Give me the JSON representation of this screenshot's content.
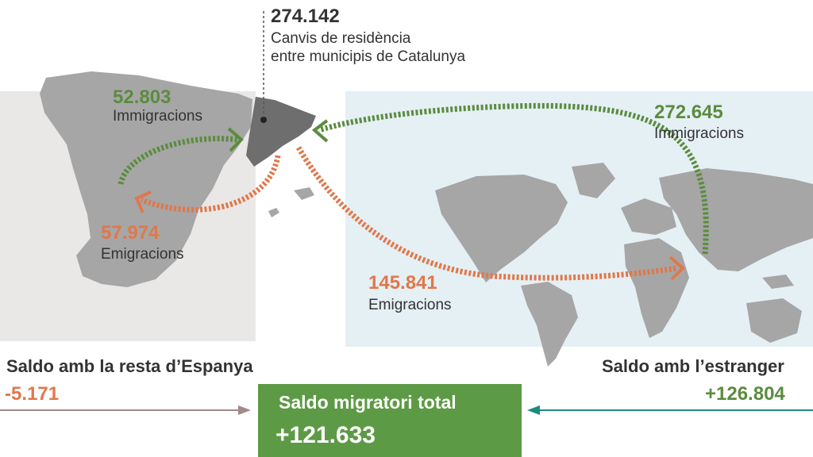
{
  "intra": {
    "value": "274.142",
    "line1": "Canvis de residència",
    "line2": "entre municipis de Catalunya"
  },
  "spain": {
    "immigration_value": "52.803",
    "immigration_label": "Immigracions",
    "emigration_value": "57.974",
    "emigration_label": "Emigracions"
  },
  "abroad": {
    "immigration_value": "272.645",
    "immigration_label": "Immigracions",
    "emigration_value": "145.841",
    "emigration_label": "Emigracions"
  },
  "saldo_spain": {
    "label": "Saldo amb la resta d’Espanya",
    "value": "-5.171"
  },
  "saldo_abroad": {
    "label": "Saldo amb l’estranger",
    "value": "+126.804"
  },
  "total": {
    "label": "Saldo migratori total",
    "value": "+121.633"
  },
  "colors": {
    "immigration": "#5b8c3e",
    "emigration": "#e0784a",
    "total_box": "#5d9a45",
    "spain_bg": "#e9e8e7",
    "world_bg": "#e5f0f5",
    "map_land": "#a6a6a6",
    "catalonia": "#6e6e6e",
    "arrow_left": "#a08a88",
    "arrow_right": "#1e8b80"
  },
  "icons": [
    "spain-map-icon",
    "catalonia-map-icon",
    "world-map-icon",
    "arrow-head-icon"
  ]
}
